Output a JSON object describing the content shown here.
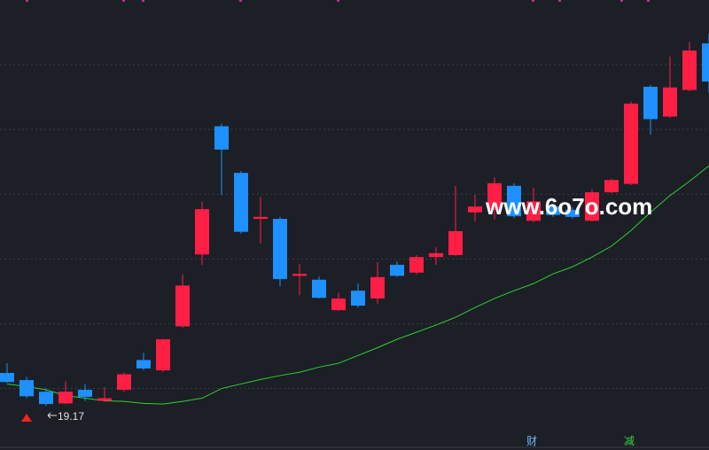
{
  "chart_data": {
    "type": "candlestick",
    "ylim": [
      18.49,
      25.44
    ],
    "gridlines": [
      24.44,
      23.44,
      22.44,
      21.44,
      20.44,
      19.44
    ],
    "up_color": "#ff1f45",
    "down_color": "#1e90ff",
    "open": [
      19.68,
      19.57,
      19.39,
      19.21,
      19.42,
      19.25,
      19.42,
      19.88,
      19.72,
      20.4,
      21.51,
      23.49,
      22.77,
      22.06,
      22.06,
      21.18,
      21.12,
      20.65,
      20.95,
      20.83,
      21.35,
      21.23,
      21.47,
      21.5,
      22.16,
      22.2,
      22.57,
      22.03,
      22.25,
      22.2,
      22.03,
      22.47,
      22.6,
      24.1,
      23.64,
      24.05,
      24.77
    ],
    "high": [
      19.83,
      19.62,
      19.44,
      19.55,
      19.51,
      19.46,
      19.69,
      19.99,
      20.21,
      21.2,
      22.32,
      23.53,
      22.8,
      22.4,
      22.09,
      21.36,
      21.17,
      20.92,
      21.06,
      21.39,
      21.4,
      21.5,
      21.62,
      22.57,
      22.43,
      22.7,
      22.61,
      22.54,
      22.29,
      22.24,
      22.51,
      22.68,
      23.87,
      24.13,
      24.57,
      24.79,
      24.92
    ],
    "low": [
      19.53,
      19.29,
      19.17,
      19.2,
      19.25,
      19.23,
      19.39,
      19.72,
      19.7,
      20.38,
      21.35,
      22.43,
      21.83,
      21.68,
      21.02,
      20.88,
      20.83,
      20.64,
      20.69,
      20.75,
      21.16,
      21.2,
      21.35,
      21.49,
      22.02,
      22.05,
      22.07,
      22.01,
      22.09,
      22.06,
      22.02,
      22.46,
      22.58,
      23.36,
      23.62,
      24.03,
      24.01
    ],
    "close": [
      19.54,
      19.32,
      19.2,
      19.39,
      19.31,
      19.29,
      19.66,
      19.75,
      20.2,
      21.03,
      22.21,
      23.13,
      21.86,
      22.09,
      21.13,
      21.21,
      20.84,
      20.83,
      20.72,
      21.16,
      21.18,
      21.47,
      21.53,
      21.87,
      22.25,
      22.61,
      22.1,
      22.33,
      22.12,
      22.09,
      22.47,
      22.66,
      23.84,
      23.6,
      24.09,
      24.66,
      24.18
    ],
    "ma": {
      "color": "#2fd12f",
      "values": [
        19.51,
        19.47,
        19.42,
        19.33,
        19.29,
        19.25,
        19.24,
        19.21,
        19.2,
        19.24,
        19.29,
        19.44,
        19.51,
        19.58,
        19.64,
        19.69,
        19.77,
        19.83,
        19.95,
        20.07,
        20.2,
        20.31,
        20.42,
        20.54,
        20.69,
        20.83,
        20.95,
        21.06,
        21.21,
        21.32,
        21.47,
        21.64,
        21.88,
        22.16,
        22.42,
        22.64,
        22.88
      ]
    },
    "low_label": 19.17,
    "watermark": "www.6o7o.com",
    "footer_labels": [
      "财",
      "减"
    ]
  }
}
